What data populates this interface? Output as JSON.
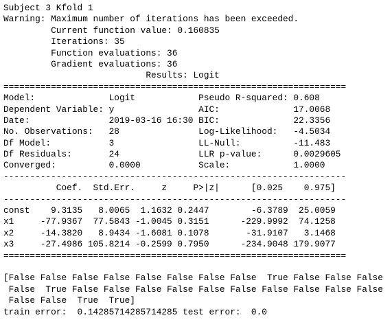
{
  "log": [
    "Subject 3 Kfold 1",
    "Warning: Maximum number of iterations has been exceeded.",
    "         Current function value: 0.160835",
    "         Iterations: 35",
    "         Function evaluations: 36",
    "         Gradient evaluations: 36",
    "                           Results: Logit"
  ],
  "summary": [
    "=================================================================",
    "Model:              Logit            Pseudo R-squared: 0.608",
    "Dependent Variable: y                AIC:              17.0068",
    "Date:               2019-03-16 16:30 BIC:              22.3356",
    "No. Observations:   28               Log-Likelihood:   -4.5034",
    "Df Model:           3                LL-Null:          -11.483",
    "Df Residuals:       24               LLR p-value:      0.0029605",
    "Converged:          0.0000           Scale:            1.0000",
    "-----------------------------------------------------------------",
    "          Coef.  Std.Err.     z     P>|z|      [0.025    0.975]",
    "-----------------------------------------------------------------",
    "const    9.3135   8.0065  1.1632 0.2447        -6.3789  25.0059",
    "x1     -77.9367  77.5843 -1.0045 0.3151      -229.9992  74.1258",
    "x2     -14.3820   8.9434 -1.6081 0.1078       -31.9107   3.1468",
    "x3     -27.4986 105.8214 -0.2599 0.7950      -234.9048 179.9077",
    "================================================================="
  ],
  "output": [
    "[False False False False False False False False  True False False False",
    " False  True False False False False False False False False False False",
    " False False  True  True]",
    "train error:  0.14285714285714285 test error:  0.0"
  ]
}
